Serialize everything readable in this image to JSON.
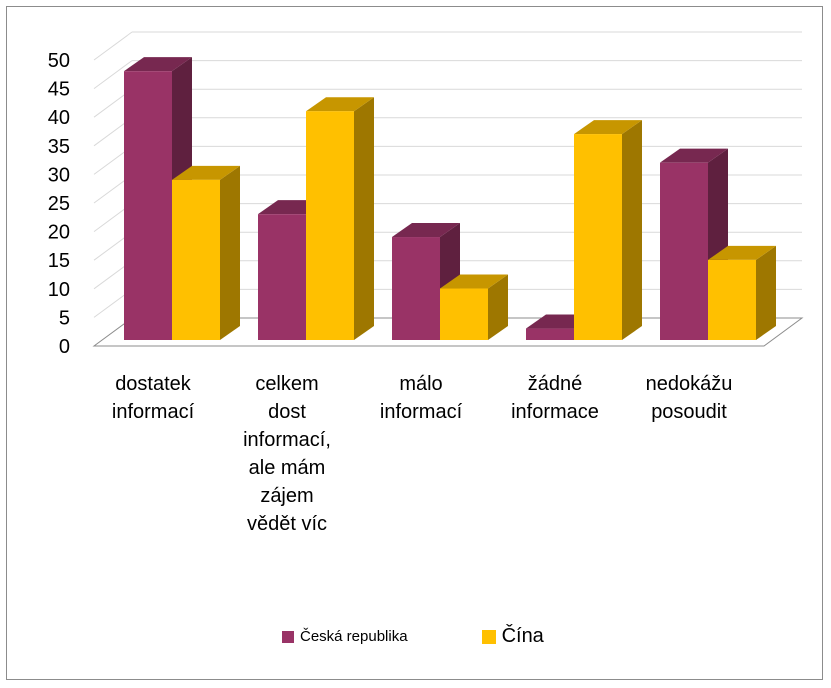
{
  "chart_data": {
    "type": "bar",
    "style": "3d-clustered-column",
    "categories": [
      [
        "dostatek",
        "informací"
      ],
      [
        "celkem",
        "dost",
        "informací,",
        "ale mám",
        "zájem",
        "vědět víc"
      ],
      [
        "málo",
        "informací"
      ],
      [
        "žádné",
        "informace"
      ],
      [
        "nedokážu",
        "posoudit"
      ]
    ],
    "series": [
      {
        "name": "Česká republika",
        "color": "#993366",
        "values": [
          47,
          22,
          18,
          2,
          31
        ]
      },
      {
        "name": "Čína",
        "color": "#FFC000",
        "values": [
          28,
          40,
          9,
          36,
          14
        ]
      }
    ],
    "y_ticks": [
      "0",
      "5",
      "10",
      "15",
      "20",
      "25",
      "30",
      "35",
      "40",
      "45",
      "50"
    ],
    "ylim": [
      0,
      50
    ],
    "grid": true,
    "legend_position": "bottom",
    "title": "",
    "xlabel": "",
    "ylabel": ""
  },
  "legend": {
    "items": [
      {
        "label": "Česká republika",
        "color": "#993366"
      },
      {
        "label": "Čína",
        "color": "#FFC000"
      }
    ]
  }
}
